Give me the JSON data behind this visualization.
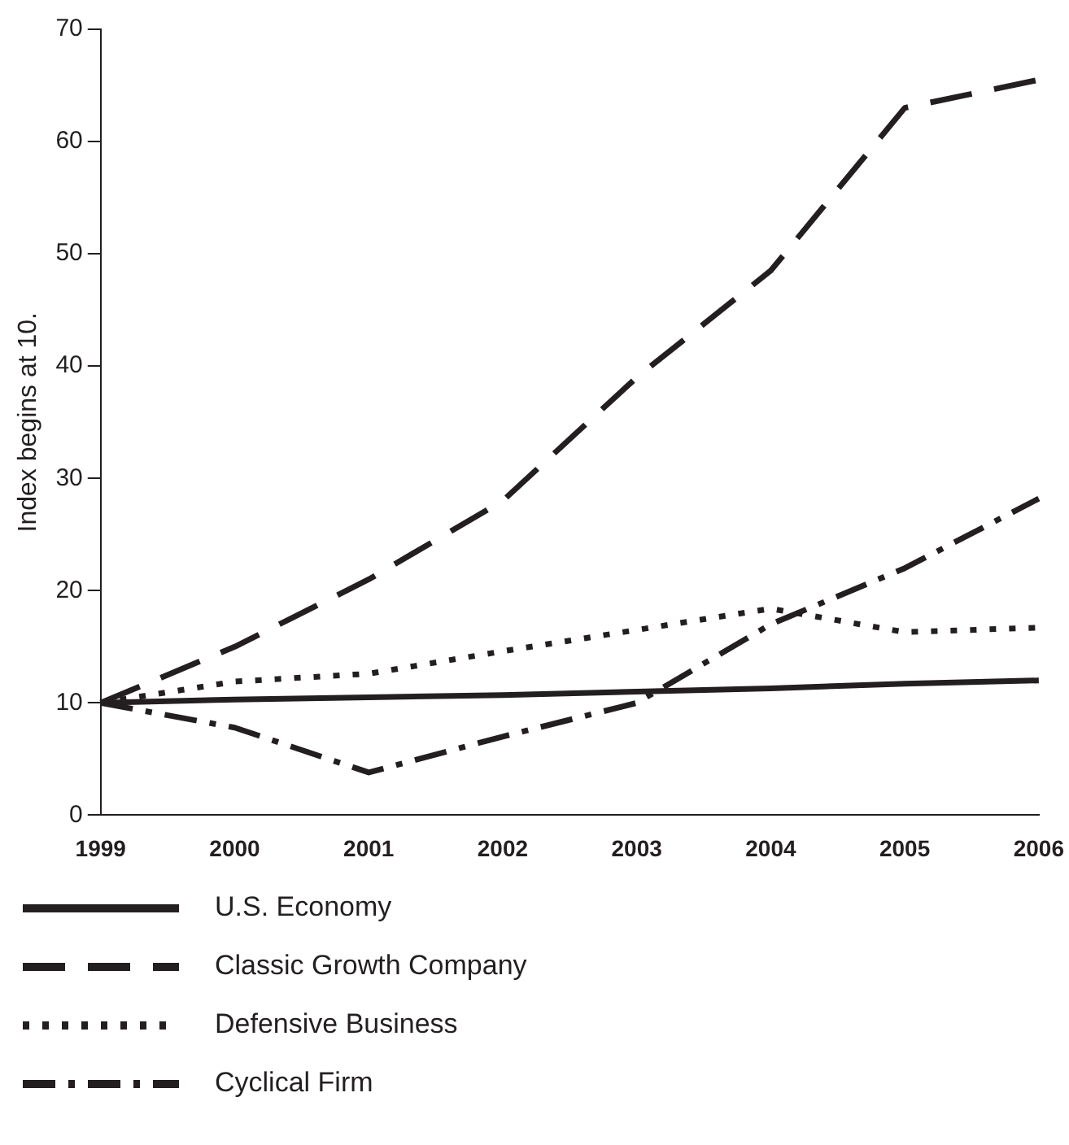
{
  "chart_data": {
    "type": "line",
    "ylabel": "Index begins at 10.",
    "categories": [
      "1999",
      "2000",
      "2001",
      "2002",
      "2003",
      "2004",
      "2005",
      "2006"
    ],
    "series": [
      {
        "name": "U.S. Economy",
        "color": "#231f20",
        "line_style": "solid",
        "values": [
          10,
          10.3,
          10.5,
          10.7,
          11,
          11.3,
          11.7,
          12
        ]
      },
      {
        "name": "Classic Growth Company",
        "color": "#231f20",
        "line_style": "longdash",
        "values": [
          10,
          15,
          21,
          28,
          39,
          48.5,
          63,
          65.5
        ]
      },
      {
        "name": "Defensive Business",
        "color": "#231f20",
        "line_style": "dotted",
        "values": [
          10,
          11.9,
          12.6,
          14.6,
          16.5,
          18.4,
          16.3,
          16.7
        ]
      },
      {
        "name": "Cyclical Firm",
        "color": "#231f20",
        "line_style": "dashdot",
        "values": [
          10,
          7.8,
          3.8,
          7,
          10,
          17,
          22,
          28.2
        ]
      }
    ],
    "ylim": [
      0,
      70
    ],
    "yticks": [
      0,
      10,
      20,
      30,
      40,
      50,
      60,
      70
    ],
    "grid": false,
    "legend": "bottom",
    "marker": "none"
  }
}
